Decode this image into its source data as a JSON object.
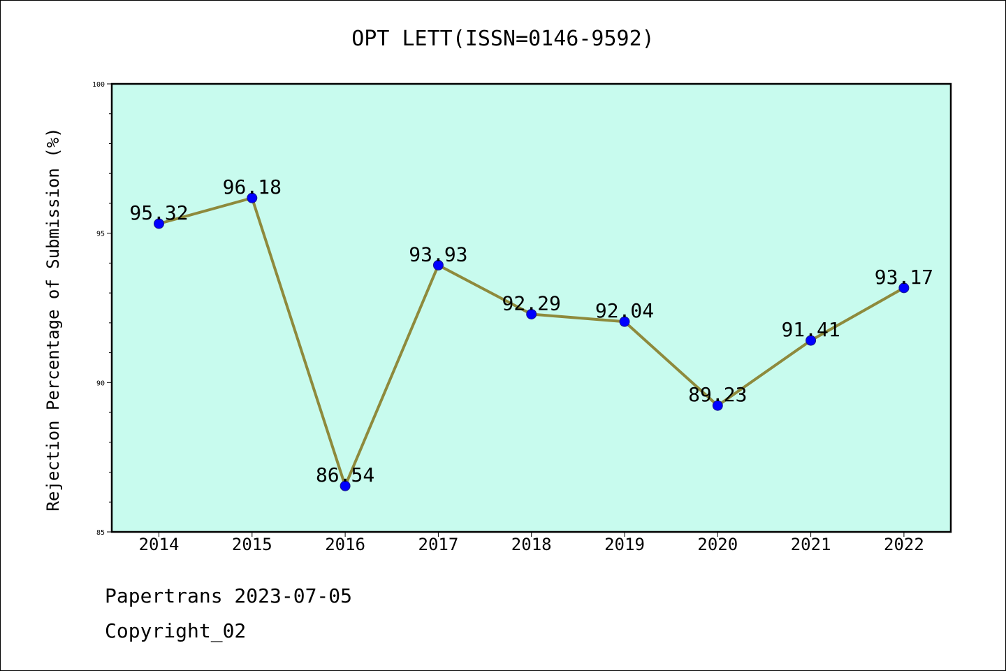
{
  "title": "OPT LETT(ISSN=0146-9592)",
  "footer": {
    "line1": "Papertrans 2023-07-05",
    "line2": "Copyright_02"
  },
  "colors": {
    "plot_background": "#c8fbee",
    "line": "#8e8a3c",
    "marker": "#0000ff",
    "marker_edge": "#1a1a8a"
  },
  "chart_data": {
    "type": "line",
    "title": "OPT LETT(ISSN=0146-9592)",
    "xlabel": "",
    "ylabel": "Rejection Percentage of Submission (%)",
    "categories": [
      "2014",
      "2015",
      "2016",
      "2017",
      "2018",
      "2019",
      "2020",
      "2021",
      "2022"
    ],
    "values": [
      95.32,
      96.18,
      86.54,
      93.93,
      92.29,
      92.04,
      89.23,
      91.41,
      93.17
    ],
    "data_labels": [
      "95.32",
      "96.18",
      "86.54",
      "93.93",
      "92.29",
      "92.04",
      "89.23",
      "91.41",
      "93.17"
    ],
    "ylim": [
      85,
      100
    ],
    "yticks": [
      "85",
      "90",
      "95",
      "100"
    ],
    "grid": false,
    "legend": "none"
  }
}
